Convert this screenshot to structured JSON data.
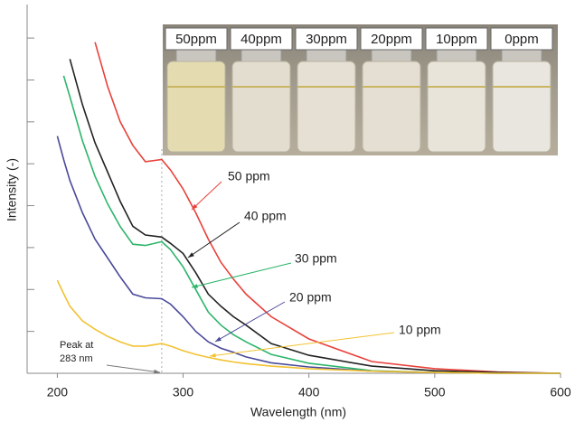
{
  "chart_data": {
    "type": "line",
    "x_label": "Wavelength (nm)",
    "y_label": "Intensity (-)",
    "x": [
      200,
      205,
      210,
      220,
      230,
      240,
      250,
      260,
      270,
      283,
      290,
      300,
      310,
      320,
      330,
      340,
      350,
      370,
      400,
      450,
      500,
      550,
      600
    ],
    "series": [
      {
        "name": "50 ppm",
        "color": "#e8413a",
        "values": [
          null,
          null,
          null,
          null,
          7.9,
          6.84,
          6.0,
          5.44,
          5.05,
          5.1,
          4.85,
          4.4,
          3.83,
          3.2,
          2.65,
          2.25,
          1.89,
          1.35,
          0.82,
          0.28,
          0.11,
          0.03,
          0
        ]
      },
      {
        "name": "40 ppm",
        "color": "#222222",
        "values": [
          null,
          null,
          7.5,
          6.41,
          5.5,
          4.8,
          4.1,
          3.51,
          3.3,
          3.25,
          3.1,
          2.86,
          2.4,
          1.89,
          1.6,
          1.35,
          1.15,
          0.71,
          0.43,
          0.17,
          0.06,
          0.02,
          0
        ]
      },
      {
        "name": "30 ppm",
        "color": "#2db56a",
        "values": [
          null,
          7.1,
          6.6,
          5.55,
          4.7,
          4.04,
          3.5,
          3.08,
          3.05,
          3.14,
          2.95,
          2.54,
          2.0,
          1.46,
          1.15,
          0.92,
          0.75,
          0.45,
          0.24,
          0.06,
          0.02,
          0,
          0
        ]
      },
      {
        "name": "20 ppm",
        "color": "#4a4a9a",
        "values": [
          5.66,
          5.1,
          4.6,
          3.83,
          3.2,
          2.75,
          2.3,
          1.89,
          1.8,
          1.78,
          1.65,
          1.35,
          1.0,
          0.75,
          0.6,
          0.5,
          0.39,
          0.25,
          0.15,
          0.05,
          0.02,
          0,
          0
        ]
      },
      {
        "name": "10 ppm",
        "color": "#f2c232",
        "values": [
          2.22,
          1.9,
          1.6,
          1.25,
          1.05,
          0.88,
          0.75,
          0.65,
          0.65,
          0.71,
          0.65,
          0.54,
          0.45,
          0.38,
          0.32,
          0.27,
          0.23,
          0.17,
          0.11,
          0.05,
          0.02,
          0,
          0
        ]
      }
    ],
    "xlim": [
      176,
      600
    ],
    "ylim": [
      0,
      8.8
    ],
    "xticks": [
      200,
      300,
      400,
      500,
      600
    ],
    "yticks": [
      1,
      2,
      3,
      4,
      5,
      6,
      7,
      8
    ],
    "peak_x": 283,
    "peak_annotation": [
      "Peak at",
      "283 nm"
    ],
    "inset_labels": [
      "50ppm",
      "40ppm",
      "30ppm",
      "20ppm",
      "10ppm",
      "0ppm"
    ]
  }
}
